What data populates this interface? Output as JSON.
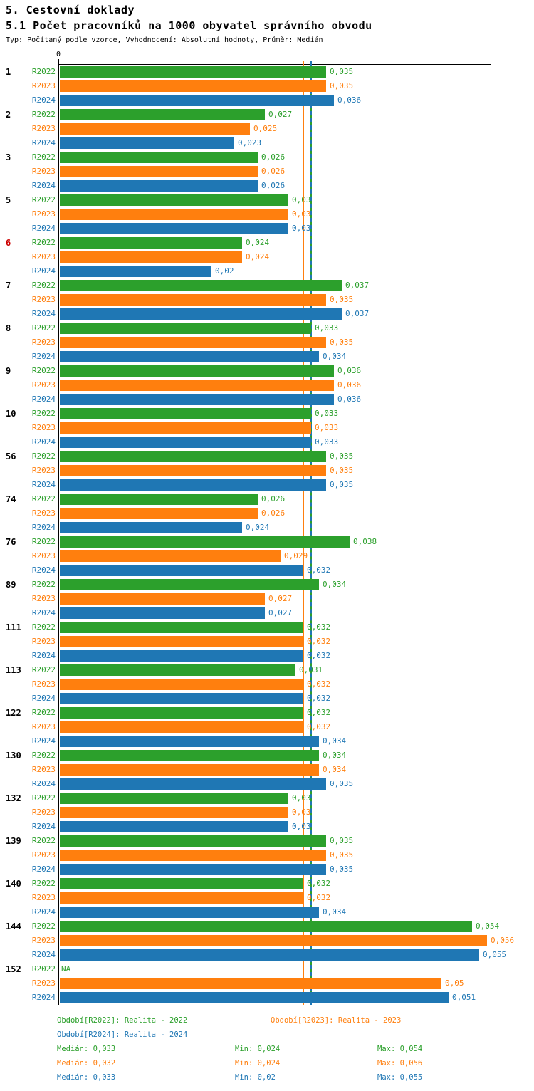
{
  "header": {
    "title": "5. Cestovní doklady",
    "subtitle": "5.1 Počet pracovníků na 1000 obyvatel správního obvodu",
    "meta": "Typ: Počítaný podle vzorce, Vyhodnocení: Absolutní hodnoty, Průměr: Medián"
  },
  "colors": {
    "r2022": "#2ca02c",
    "r2023": "#ff7f0e",
    "r2024": "#1f77b4",
    "highlight_label": "#cc0000",
    "axis": "#000000"
  },
  "chart_data": {
    "type": "bar",
    "orientation": "horizontal",
    "axis_zero_label": "0",
    "xlim": [
      0,
      0.0565
    ],
    "series_keys": [
      "R2022",
      "R2023",
      "R2024"
    ],
    "series_color_keys": [
      "r2022",
      "r2023",
      "r2024"
    ],
    "na_text": "NA",
    "groups": [
      {
        "label": "1",
        "highlight": false,
        "values": [
          0.035,
          0.035,
          0.036
        ],
        "value_labels": [
          "0,035",
          "0,035",
          "0,036"
        ]
      },
      {
        "label": "2",
        "highlight": false,
        "values": [
          0.027,
          0.025,
          0.023
        ],
        "value_labels": [
          "0,027",
          "0,025",
          "0,023"
        ]
      },
      {
        "label": "3",
        "highlight": false,
        "values": [
          0.026,
          0.026,
          0.026
        ],
        "value_labels": [
          "0,026",
          "0,026",
          "0,026"
        ]
      },
      {
        "label": "5",
        "highlight": false,
        "values": [
          0.03,
          0.03,
          0.03
        ],
        "value_labels": [
          "0,03",
          "0,03",
          "0,03"
        ]
      },
      {
        "label": "6",
        "highlight": true,
        "values": [
          0.024,
          0.024,
          0.02
        ],
        "value_labels": [
          "0,024",
          "0,024",
          "0,02"
        ]
      },
      {
        "label": "7",
        "highlight": false,
        "values": [
          0.037,
          0.035,
          0.037
        ],
        "value_labels": [
          "0,037",
          "0,035",
          "0,037"
        ]
      },
      {
        "label": "8",
        "highlight": false,
        "values": [
          0.033,
          0.035,
          0.034
        ],
        "value_labels": [
          "0,033",
          "0,035",
          "0,034"
        ]
      },
      {
        "label": "9",
        "highlight": false,
        "values": [
          0.036,
          0.036,
          0.036
        ],
        "value_labels": [
          "0,036",
          "0,036",
          "0,036"
        ]
      },
      {
        "label": "10",
        "highlight": false,
        "values": [
          0.033,
          0.033,
          0.033
        ],
        "value_labels": [
          "0,033",
          "0,033",
          "0,033"
        ]
      },
      {
        "label": "56",
        "highlight": false,
        "values": [
          0.035,
          0.035,
          0.035
        ],
        "value_labels": [
          "0,035",
          "0,035",
          "0,035"
        ]
      },
      {
        "label": "74",
        "highlight": false,
        "values": [
          0.026,
          0.026,
          0.024
        ],
        "value_labels": [
          "0,026",
          "0,026",
          "0,024"
        ]
      },
      {
        "label": "76",
        "highlight": false,
        "values": [
          0.038,
          0.029,
          0.032
        ],
        "value_labels": [
          "0,038",
          "0,029",
          "0,032"
        ]
      },
      {
        "label": "89",
        "highlight": false,
        "values": [
          0.034,
          0.027,
          0.027
        ],
        "value_labels": [
          "0,034",
          "0,027",
          "0,027"
        ]
      },
      {
        "label": "111",
        "highlight": false,
        "values": [
          0.032,
          0.032,
          0.032
        ],
        "value_labels": [
          "0,032",
          "0,032",
          "0,032"
        ]
      },
      {
        "label": "113",
        "highlight": false,
        "values": [
          0.031,
          0.032,
          0.032
        ],
        "value_labels": [
          "0,031",
          "0,032",
          "0,032"
        ]
      },
      {
        "label": "122",
        "highlight": false,
        "values": [
          0.032,
          0.032,
          0.034
        ],
        "value_labels": [
          "0,032",
          "0,032",
          "0,034"
        ]
      },
      {
        "label": "130",
        "highlight": false,
        "values": [
          0.034,
          0.034,
          0.035
        ],
        "value_labels": [
          "0,034",
          "0,034",
          "0,035"
        ]
      },
      {
        "label": "132",
        "highlight": false,
        "values": [
          0.03,
          0.03,
          0.03
        ],
        "value_labels": [
          "0,03",
          "0,03",
          "0,03"
        ]
      },
      {
        "label": "139",
        "highlight": false,
        "values": [
          0.035,
          0.035,
          0.035
        ],
        "value_labels": [
          "0,035",
          "0,035",
          "0,035"
        ]
      },
      {
        "label": "140",
        "highlight": false,
        "values": [
          0.032,
          0.032,
          0.034
        ],
        "value_labels": [
          "0,032",
          "0,032",
          "0,034"
        ]
      },
      {
        "label": "144",
        "highlight": false,
        "values": [
          0.054,
          0.056,
          0.055
        ],
        "value_labels": [
          "0,054",
          "0,056",
          "0,055"
        ]
      },
      {
        "label": "152",
        "highlight": false,
        "values": [
          null,
          0.05,
          0.051
        ],
        "value_labels": [
          "NA",
          "0,05",
          "0,051"
        ]
      }
    ],
    "median_lines": [
      {
        "series": "R2022",
        "value": 0.033,
        "color_key": "r2022",
        "style": "solid"
      },
      {
        "series": "R2023",
        "value": 0.032,
        "color_key": "r2023",
        "style": "solid"
      },
      {
        "series": "R2024",
        "value": 0.033,
        "color_key": "r2024",
        "style": "dashed"
      }
    ]
  },
  "legend": {
    "items": [
      {
        "text": "Období[R2022]: Realita - 2022",
        "color_key": "r2022",
        "row": 0,
        "col": 0
      },
      {
        "text": "Období[R2023]: Realita - 2023",
        "color_key": "r2023",
        "row": 0,
        "col": 1
      },
      {
        "text": "Období[R2024]: Realita - 2024",
        "color_key": "r2024",
        "row": 1,
        "col": 0
      }
    ]
  },
  "stats": {
    "rows": [
      {
        "color_key": "r2022",
        "median": "Medián: 0,033",
        "min": "Min: 0,024",
        "max": "Max: 0,054"
      },
      {
        "color_key": "r2023",
        "median": "Medián: 0,032",
        "min": "Min: 0,024",
        "max": "Max: 0,056"
      },
      {
        "color_key": "r2024",
        "median": "Medián: 0,033",
        "min": "Min: 0,02",
        "max": "Max: 0,055"
      }
    ]
  }
}
